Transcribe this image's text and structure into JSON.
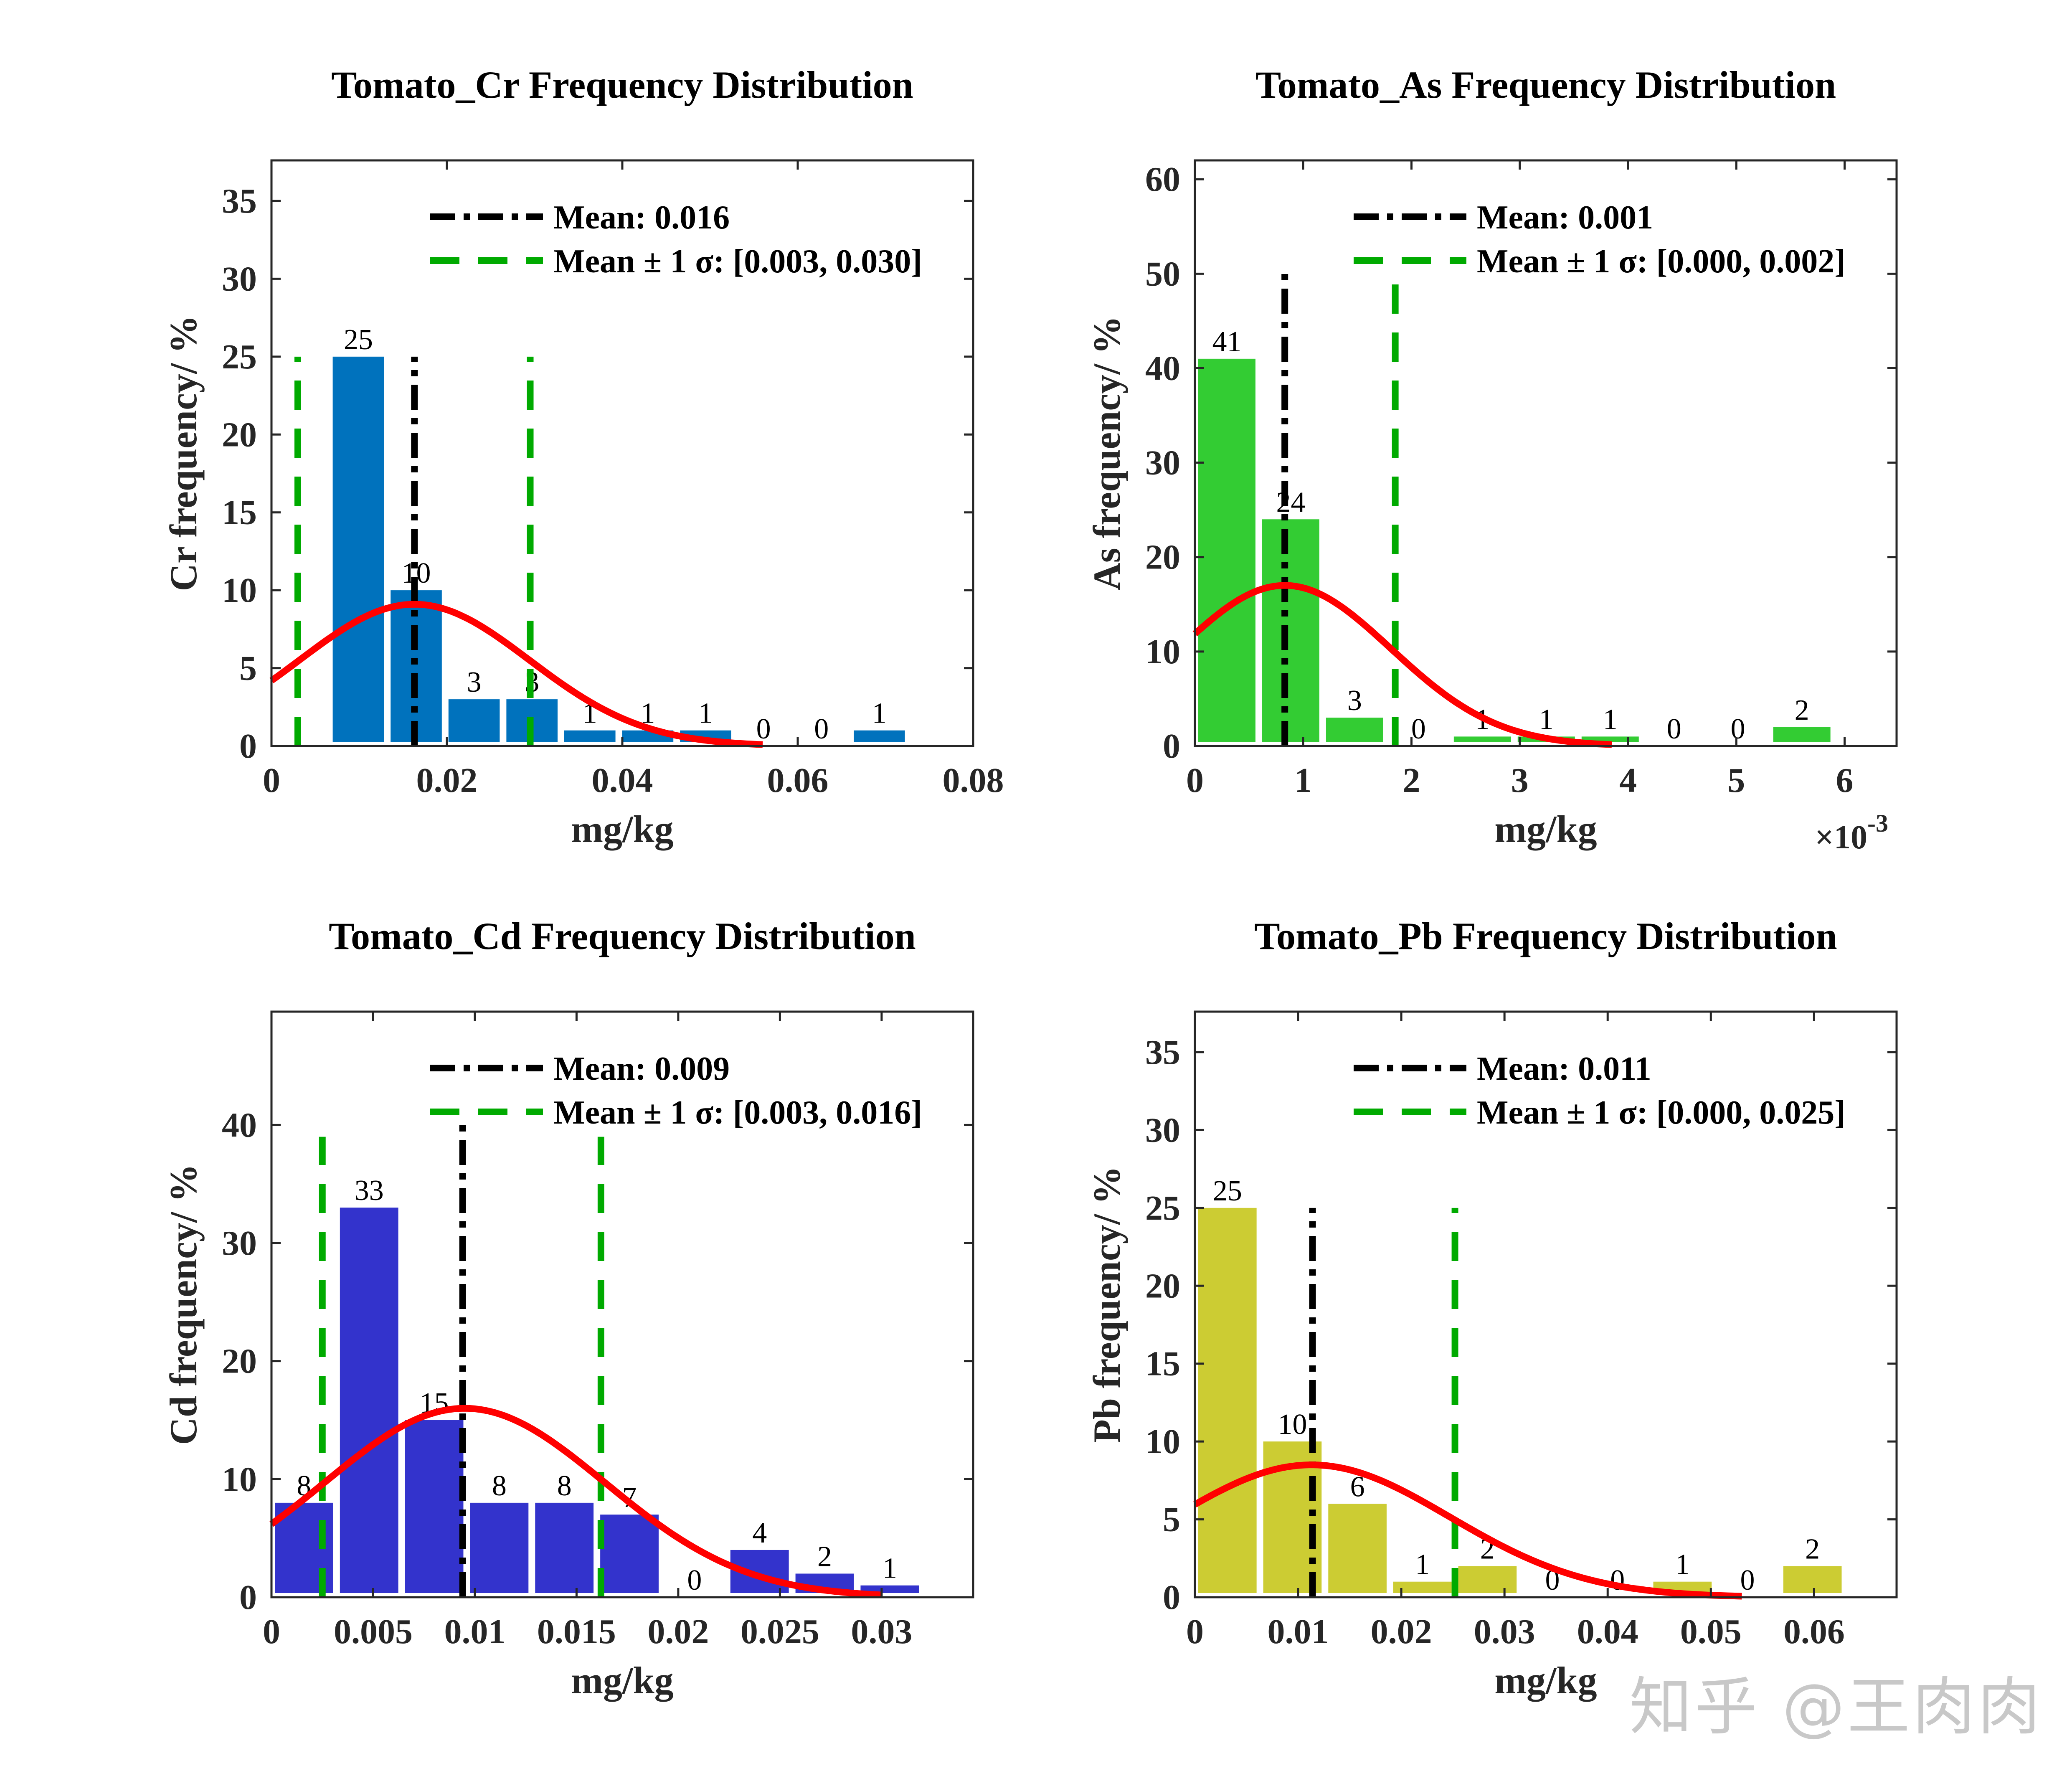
{
  "watermark": "知乎 @王肉肉",
  "colors": {
    "fit_curve": "#ff0000",
    "mean_line": "#000000",
    "sigma_line": "#00aa00",
    "axis": "#262626"
  },
  "chart_data": [
    {
      "type": "bar",
      "title": "Tomato_Cr Frequency Distribution",
      "xlabel": "mg/kg",
      "ylabel": "Cr frequency/ %",
      "x_exponent_label": "",
      "xlim": [
        0,
        0.08
      ],
      "ylim": [
        0,
        37.6
      ],
      "xticks": [
        0,
        0.02,
        0.04,
        0.06,
        0.08
      ],
      "xtick_labels": [
        "0",
        "0.02",
        "0.04",
        "0.06",
        "0.08"
      ],
      "yticks": [
        0,
        5,
        10,
        15,
        20,
        25,
        30,
        35
      ],
      "bar_color": "#0072bd",
      "bin_start": 0.0066,
      "bin_width": 0.0066,
      "values": [
        25,
        10,
        3,
        3,
        1,
        1,
        1,
        0,
        0,
        1
      ],
      "fit": {
        "mean": 0.0163,
        "sigma": 0.0131,
        "peak": 9.1,
        "x_end": 0.056
      },
      "mean_line": {
        "x": 0.0163,
        "ymax": 25
      },
      "sigma_lines": {
        "x": [
          0.003,
          0.0295
        ],
        "ymax": 25
      },
      "legend": [
        "Mean: 0.016",
        "Mean ± 1 σ: [0.003, 0.030]"
      ],
      "legend_position": "top-center"
    },
    {
      "type": "bar",
      "title": "Tomato_As Frequency Distribution",
      "xlabel": "mg/kg",
      "ylabel": "As frequency/ %",
      "x_exponent_label": "×10",
      "x_exponent_power": "-3",
      "xlim": [
        0,
        0.00648
      ],
      "ylim": [
        0,
        62
      ],
      "xticks": [
        0,
        0.001,
        0.002,
        0.003,
        0.004,
        0.005,
        0.006
      ],
      "xtick_labels": [
        "0",
        "1",
        "2",
        "3",
        "4",
        "5",
        "6"
      ],
      "yticks": [
        0,
        10,
        20,
        30,
        40,
        50,
        60
      ],
      "bar_color": "#33cc33",
      "bin_start": 0.0,
      "bin_width": 0.00059,
      "values": [
        41,
        24,
        3,
        0,
        1,
        1,
        1,
        0,
        0,
        2
      ],
      "fit": {
        "mean": 0.00083,
        "sigma": 0.00098,
        "peak": 17.0,
        "x_end": 0.00385
      },
      "mean_line": {
        "x": 0.00083,
        "ymax": 50
      },
      "sigma_lines": {
        "x": [
          0.00185
        ],
        "ymax": 50
      },
      "legend": [
        "Mean: 0.001",
        "Mean ± 1 σ: [0.000, 0.002]"
      ],
      "legend_position": "top-center"
    },
    {
      "type": "bar",
      "title": "Tomato_Cd Frequency Distribution",
      "xlabel": "mg/kg",
      "ylabel": "Cd frequency/ %",
      "x_exponent_label": "",
      "xlim": [
        0,
        0.0345
      ],
      "ylim": [
        0,
        49.6
      ],
      "xticks": [
        0,
        0.005,
        0.01,
        0.015,
        0.02,
        0.025,
        0.03
      ],
      "xtick_labels": [
        "0",
        "0.005",
        "0.01",
        "0.015",
        "0.02",
        "0.025",
        "0.03"
      ],
      "yticks": [
        0,
        10,
        20,
        30,
        40
      ],
      "bar_color": "#3333cc",
      "bin_start": 0.0,
      "bin_width": 0.0032,
      "values": [
        8,
        33,
        15,
        8,
        8,
        7,
        0,
        4,
        2,
        1
      ],
      "fit": {
        "mean": 0.0095,
        "sigma": 0.0069,
        "peak": 16.0,
        "x_end": 0.03
      },
      "mean_line": {
        "x": 0.0094,
        "ymax": 40
      },
      "sigma_lines": {
        "x": [
          0.0025,
          0.0162
        ],
        "ymax": 39
      },
      "legend": [
        "Mean: 0.009",
        "Mean ± 1 σ: [0.003, 0.016]"
      ],
      "legend_position": "top-center"
    },
    {
      "type": "bar",
      "title": "Tomato_Pb Frequency Distribution",
      "xlabel": "mg/kg",
      "ylabel": "Pb frequency/ %",
      "x_exponent_label": "",
      "xlim": [
        0,
        0.068
      ],
      "ylim": [
        0,
        37.6
      ],
      "xticks": [
        0,
        0.01,
        0.02,
        0.03,
        0.04,
        0.05,
        0.06
      ],
      "xtick_labels": [
        "0",
        "0.01",
        "0.02",
        "0.03",
        "0.04",
        "0.05",
        "0.06"
      ],
      "yticks": [
        0,
        5,
        10,
        15,
        20,
        25,
        30,
        35
      ],
      "bar_color": "#cccc33",
      "bin_start": 0.0,
      "bin_width": 0.0063,
      "values": [
        25,
        10,
        6,
        1,
        2,
        0,
        0,
        1,
        0,
        2
      ],
      "fit": {
        "mean": 0.0113,
        "sigma": 0.0134,
        "peak": 8.5,
        "x_end": 0.053
      },
      "mean_line": {
        "x": 0.0114,
        "ymax": 25
      },
      "sigma_lines": {
        "x": [
          0.0252
        ],
        "ymax": 25
      },
      "legend": [
        "Mean: 0.011",
        "Mean ± 1 σ: [0.000, 0.025]"
      ],
      "legend_position": "top-center"
    }
  ]
}
